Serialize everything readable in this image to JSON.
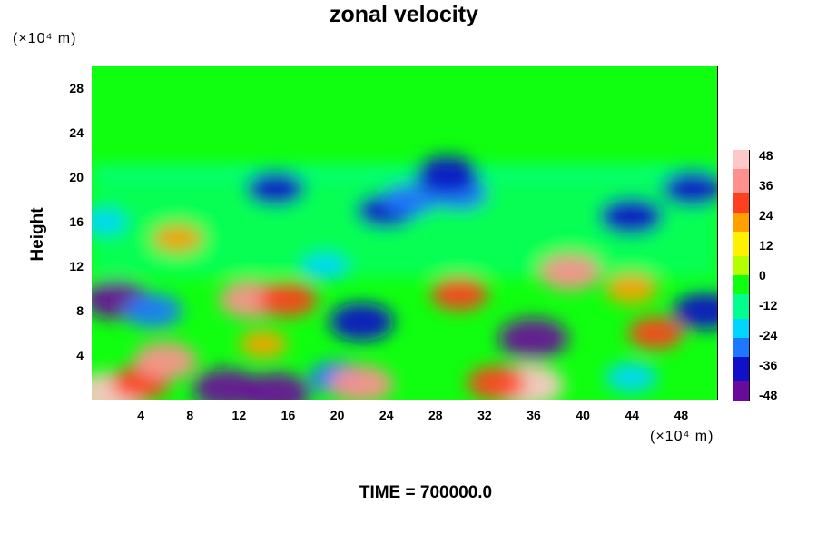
{
  "chart_data": {
    "type": "heatmap",
    "title": "zonal velocity",
    "ylabel": "Height",
    "y_unit": "(×10⁴ m)",
    "x_unit": "(×10⁴ m)",
    "footer": "TIME = 700000.0",
    "x_ticks": [
      "4",
      "8",
      "12",
      "16",
      "20",
      "24",
      "28",
      "32",
      "36",
      "40",
      "44",
      "48"
    ],
    "y_ticks": [
      "28",
      "24",
      "20",
      "16",
      "12",
      "8",
      "4"
    ],
    "colorbar_ticks": [
      "48",
      "36",
      "24",
      "12",
      "0",
      "-12",
      "-24",
      "-36",
      "-48"
    ],
    "xlim": [
      0,
      51
    ],
    "ylim": [
      0,
      30
    ],
    "clim": [
      -50,
      50
    ],
    "colormap": [
      "#6a0a9a",
      "#1010c8",
      "#1e78ff",
      "#00d6ff",
      "#00ff8c",
      "#10ff10",
      "#b4ff00",
      "#fff000",
      "#ffa000",
      "#ff4020",
      "#ff9090",
      "#ffc8c8"
    ],
    "features": [
      {
        "x": 1.5,
        "y": 0.5,
        "value": 50
      },
      {
        "x": 4,
        "y": 1.5,
        "value": 32
      },
      {
        "x": 6,
        "y": 3.5,
        "value": 38
      },
      {
        "x": 2,
        "y": 9,
        "value": -42
      },
      {
        "x": 5,
        "y": 8,
        "value": -32
      },
      {
        "x": 1,
        "y": 16,
        "value": -20
      },
      {
        "x": 7,
        "y": 14.5,
        "value": 22
      },
      {
        "x": 13,
        "y": 9,
        "value": 38
      },
      {
        "x": 16,
        "y": 9,
        "value": 32
      },
      {
        "x": 11,
        "y": 1,
        "value": -44
      },
      {
        "x": 15,
        "y": 0.6,
        "value": -46
      },
      {
        "x": 14,
        "y": 5,
        "value": 18
      },
      {
        "x": 20,
        "y": 2,
        "value": -30
      },
      {
        "x": 22,
        "y": 1.4,
        "value": 38
      },
      {
        "x": 22,
        "y": 7,
        "value": -40
      },
      {
        "x": 19,
        "y": 12,
        "value": -20
      },
      {
        "x": 24,
        "y": 17,
        "value": -34
      },
      {
        "x": 26,
        "y": 18,
        "value": -30
      },
      {
        "x": 30,
        "y": 9.5,
        "value": 30
      },
      {
        "x": 36,
        "y": 5.5,
        "value": -46
      },
      {
        "x": 35.5,
        "y": 1.3,
        "value": 50
      },
      {
        "x": 33,
        "y": 1.5,
        "value": 32
      },
      {
        "x": 39,
        "y": 11.5,
        "value": 36
      },
      {
        "x": 44,
        "y": 10,
        "value": 24
      },
      {
        "x": 46,
        "y": 6,
        "value": 28
      },
      {
        "x": 44,
        "y": 16.5,
        "value": -40
      },
      {
        "x": 49,
        "y": 19,
        "value": -36
      },
      {
        "x": 50,
        "y": 8,
        "value": -38
      },
      {
        "x": 44,
        "y": 2,
        "value": -24
      },
      {
        "x": 30,
        "y": 18.5,
        "value": -30
      },
      {
        "x": 15,
        "y": 19,
        "value": -34
      },
      {
        "x": 29,
        "y": 20.2,
        "value": -40
      }
    ]
  }
}
